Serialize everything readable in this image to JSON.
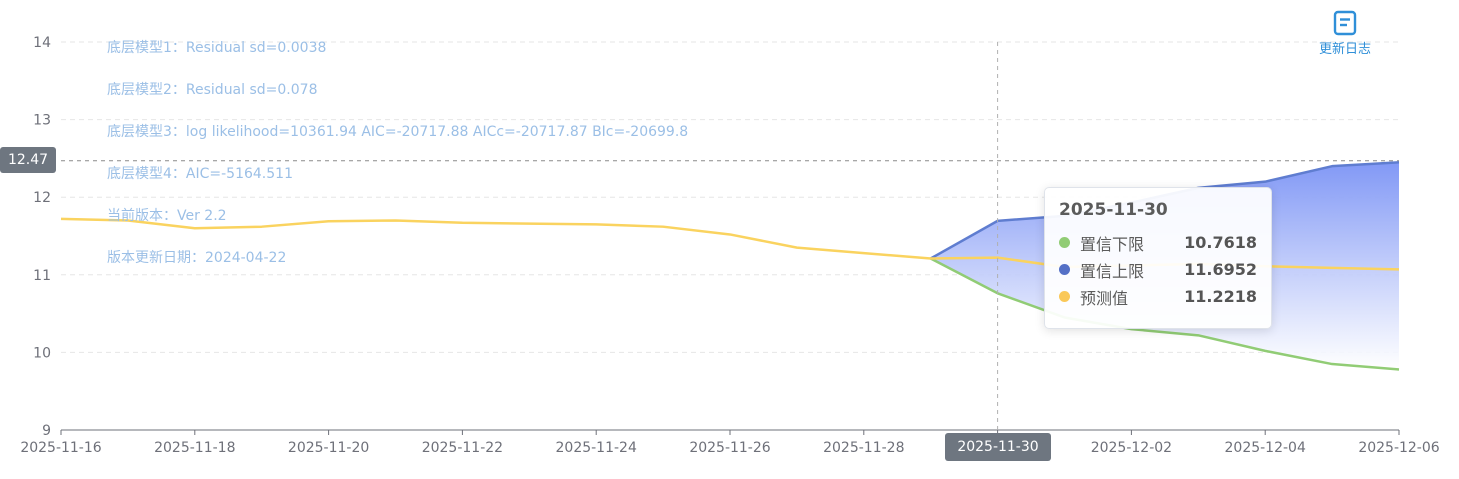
{
  "notes": [
    "底层模型1：Residual sd=0.0038",
    "底层模型2：Residual sd=0.078",
    "底层模型3：log likelihood=10361.94 AIC=-20717.88 AICc=-20717.87 BIc=-20699.8",
    "底层模型4：AIC=-5164.511",
    "当前版本：Ver 2.2",
    "版本更新日期：2024-04-22"
  ],
  "toolbar": {
    "changelog_label": "更新日志",
    "changelog_icon": "document-icon"
  },
  "crosshair": {
    "y_label": "12.47",
    "y_value": 12.47,
    "x_label": "2025-11-30"
  },
  "tooltip": {
    "title": "2025-11-30",
    "rows": [
      {
        "name": "置信下限",
        "value": "10.7618",
        "color": "#91cc75"
      },
      {
        "name": "置信上限",
        "value": "11.6952",
        "color": "#5470c6"
      },
      {
        "name": "预测值",
        "value": "11.2218",
        "color": "#fac858"
      }
    ]
  },
  "colors": {
    "forecast": "#fad35f",
    "lower": "#91cc75",
    "upper": "#5f7dd0",
    "band_top": "#7b93f5",
    "grid": "#e6e6e6",
    "axis_text": "#6e7079"
  },
  "chart_data": {
    "type": "line",
    "x": [
      "2025-11-16",
      "2025-11-17",
      "2025-11-18",
      "2025-11-19",
      "2025-11-20",
      "2025-11-21",
      "2025-11-22",
      "2025-11-23",
      "2025-11-24",
      "2025-11-25",
      "2025-11-26",
      "2025-11-27",
      "2025-11-28",
      "2025-11-29",
      "2025-11-30",
      "2025-12-01",
      "2025-12-02",
      "2025-12-03",
      "2025-12-04",
      "2025-12-05",
      "2025-12-06"
    ],
    "x_tick_labels": [
      "2025-11-16",
      "2025-11-18",
      "2025-11-20",
      "2025-11-22",
      "2025-11-24",
      "2025-11-26",
      "2025-11-28",
      "2025-11-30",
      "2025-12-02",
      "2025-12-04",
      "2025-12-06"
    ],
    "y_ticks": [
      9,
      10,
      11,
      12,
      13,
      14
    ],
    "ylim": [
      9,
      14
    ],
    "grid": true,
    "series": [
      {
        "name": "预测值",
        "values": [
          11.72,
          11.7,
          11.6,
          11.62,
          11.69,
          11.7,
          11.67,
          11.66,
          11.65,
          11.62,
          11.52,
          11.35,
          11.28,
          11.21,
          11.2218,
          11.1,
          11.12,
          11.14,
          11.11,
          11.09,
          11.07
        ]
      },
      {
        "name": "置信下限",
        "values": [
          null,
          null,
          null,
          null,
          null,
          null,
          null,
          null,
          null,
          null,
          null,
          null,
          null,
          11.21,
          10.7618,
          10.45,
          10.3,
          10.22,
          10.02,
          9.85,
          9.78
        ]
      },
      {
        "name": "置信上限",
        "values": [
          null,
          null,
          null,
          null,
          null,
          null,
          null,
          null,
          null,
          null,
          null,
          null,
          null,
          11.21,
          11.6952,
          11.76,
          11.93,
          12.12,
          12.2,
          12.4,
          12.45
        ]
      }
    ]
  }
}
